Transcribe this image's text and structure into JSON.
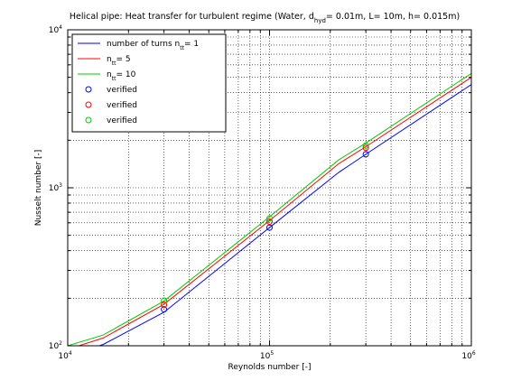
{
  "chart_data": {
    "type": "line",
    "title": "Helical pipe: Heat transfer for turbulent regime (Water, d",
    "title_sub": "hyd",
    "title_rest": "= 0.01m, L= 10m, h= 0.015m)",
    "xlabel": "Reynolds number [-]",
    "ylabel": "Nusselt number [-]",
    "xscale": "log",
    "yscale": "log",
    "xlim": [
      10000,
      1000000
    ],
    "ylim": [
      100,
      10000
    ],
    "x_ticks": [
      {
        "value": 10000,
        "base": "10",
        "exp": "4"
      },
      {
        "value": 100000,
        "base": "10",
        "exp": "5"
      },
      {
        "value": 1000000,
        "base": "10",
        "exp": "6"
      }
    ],
    "y_ticks": [
      {
        "value": 100,
        "base": "10",
        "exp": "2"
      },
      {
        "value": 1000,
        "base": "10",
        "exp": "3"
      },
      {
        "value": 10000,
        "base": "10",
        "exp": "4"
      }
    ],
    "grid": true,
    "grid_style": "dotted",
    "legend_position": "top-left",
    "series": [
      {
        "name_prefix": "number of turns n",
        "name_sub": "tt",
        "name_suffix": "= 1",
        "color": "#0000ff",
        "kind": "line",
        "x": [
          10000,
          15000,
          30000,
          100000,
          220000,
          300000,
          1000000
        ],
        "y": [
          85,
          102,
          163,
          560,
          1250,
          1630,
          4500
        ]
      },
      {
        "name_prefix": "n",
        "name_sub": "tt",
        "name_suffix": "= 5",
        "color": "#ff0000",
        "kind": "line",
        "x": [
          10000,
          15000,
          30000,
          100000,
          220000,
          300000,
          1000000
        ],
        "y": [
          95,
          112,
          183,
          620,
          1420,
          1820,
          5000
        ]
      },
      {
        "name_prefix": "n",
        "name_sub": "tt",
        "name_suffix": "= 10",
        "color": "#00cc00",
        "kind": "line",
        "x": [
          10000,
          15000,
          30000,
          100000,
          220000,
          300000,
          1000000
        ],
        "y": [
          100,
          117,
          192,
          655,
          1500,
          1920,
          5300
        ]
      },
      {
        "name_prefix": "verified",
        "name_sub": "",
        "name_suffix": "",
        "color": "#0000ff",
        "kind": "marker",
        "x": [
          30000,
          100000,
          300000
        ],
        "y": [
          170,
          560,
          1630
        ]
      },
      {
        "name_prefix": "verified",
        "name_sub": "",
        "name_suffix": "",
        "color": "#ff0000",
        "kind": "marker",
        "x": [
          30000,
          100000,
          300000
        ],
        "y": [
          182,
          610,
          1790
        ]
      },
      {
        "name_prefix": "verified",
        "name_sub": "",
        "name_suffix": "",
        "color": "#00cc00",
        "kind": "marker",
        "x": [
          30000,
          100000,
          300000
        ],
        "y": [
          193,
          640,
          1850
        ]
      }
    ]
  }
}
